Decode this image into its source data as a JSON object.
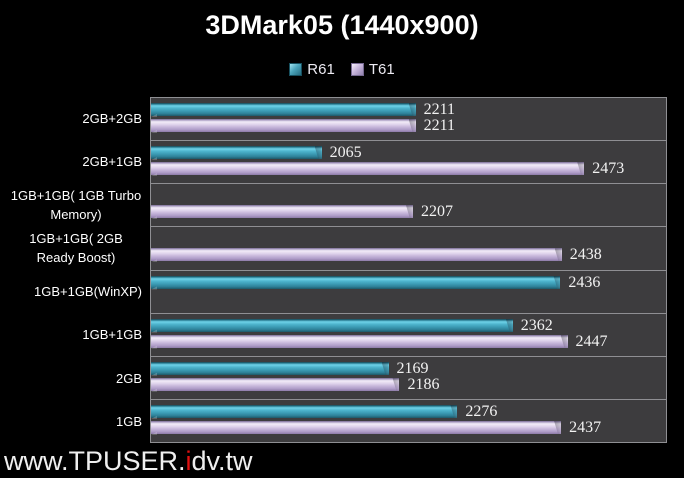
{
  "title": "3DMark05 (1440x900)",
  "legend": [
    {
      "label": "R61",
      "color": "#3f9db6"
    },
    {
      "label": "T61",
      "color": "#c9b9dc"
    }
  ],
  "watermark": {
    "prefix": "www.TPUSER.",
    "highlight": "i",
    "suffix": "dv.tw",
    "highlight_color": "#e01010"
  },
  "chart_data": {
    "type": "bar",
    "orientation": "horizontal",
    "title": "3DMark05 (1440x900)",
    "categories": [
      "2GB+2GB",
      "2GB+1GB",
      "1GB+1GB( 1GB Turbo Memory)",
      "1GB+1GB( 2GB Ready Boost)",
      "1GB+1GB(WinXP)",
      "1GB+1GB",
      "2GB",
      "1GB"
    ],
    "series": [
      {
        "name": "R61",
        "color": "#3f9db6",
        "values": [
          2211,
          2065,
          null,
          null,
          2436,
          2362,
          2169,
          2276
        ]
      },
      {
        "name": "T61",
        "color": "#c9b9dc",
        "values": [
          2211,
          2473,
          2207,
          2438,
          null,
          2447,
          2186,
          2437
        ]
      }
    ],
    "xlim": [
      1800,
      2600
    ],
    "xlabel": "",
    "ylabel": "",
    "grid": false,
    "legend_position": "top",
    "plot_background": "#3d3c3e",
    "row_separator_color": "#8f8f93",
    "page_background": "#000000",
    "data_labels": true
  }
}
